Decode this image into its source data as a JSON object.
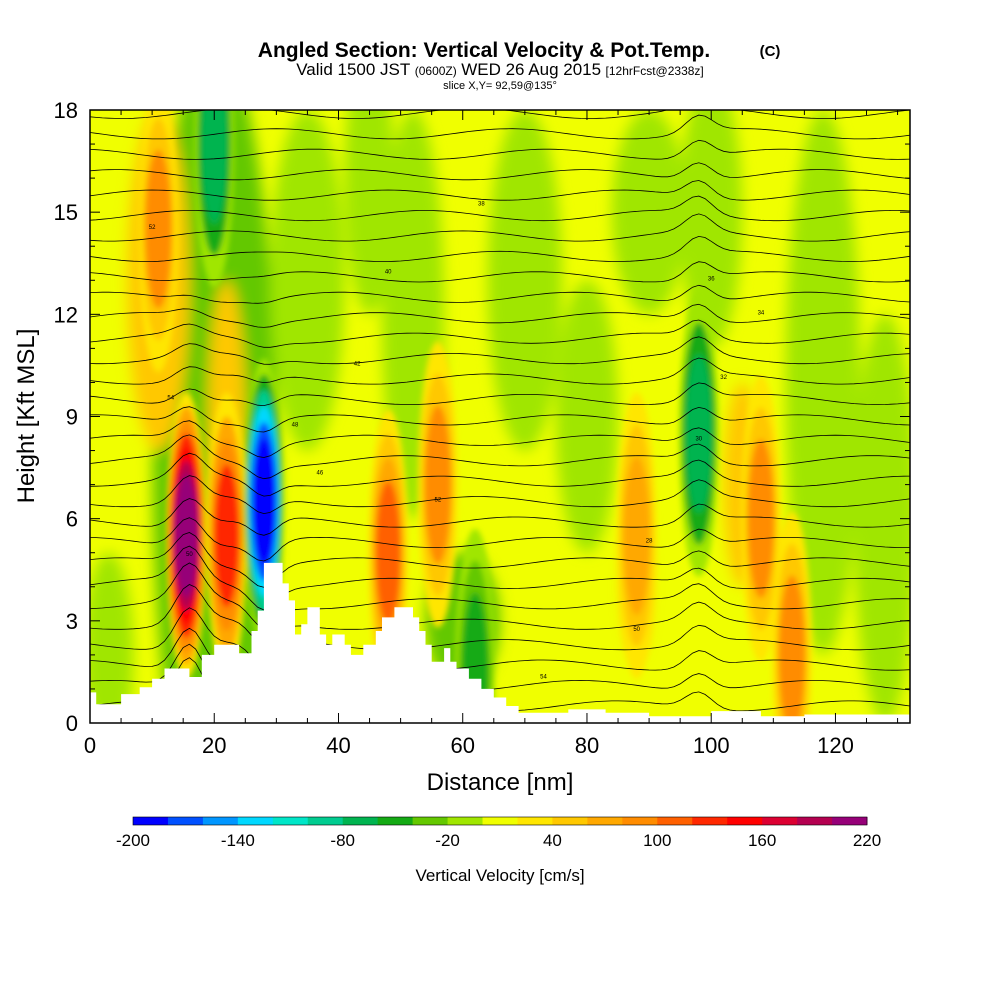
{
  "chart_data": {
    "type": "heatmap",
    "title": "Angled Section: Vertical Velocity & Pot.Temp.",
    "title_suffix": "(C)",
    "subtitle_prefix": "Valid 1500 JST",
    "subtitle_utc": "(0600Z)",
    "subtitle_date": "WED 26 Aug 2015",
    "subtitle_fcst": "[12hrFcst@2338z]",
    "slice_info": "slice X,Y= 92,59@135°",
    "xlabel": "Distance [nm]",
    "ylabel": "Height [Kft MSL]",
    "xlim": [
      0,
      132
    ],
    "ylim": [
      0,
      18
    ],
    "xticks": [
      0,
      20,
      40,
      60,
      80,
      100,
      120
    ],
    "yticks": [
      0,
      3,
      6,
      9,
      12,
      15,
      18
    ],
    "colorbar": {
      "label": "Vertical Velocity [cm/s]",
      "min": -200,
      "max": 220,
      "step": 20,
      "tick_labels": [
        -200,
        -140,
        -80,
        -20,
        40,
        100,
        160,
        220
      ],
      "colors": [
        "#0000ff",
        "#0050ff",
        "#0096ff",
        "#00d8ff",
        "#00e6c8",
        "#00cc90",
        "#00b450",
        "#14aa14",
        "#64c800",
        "#a0e600",
        "#f0ff00",
        "#ffe600",
        "#ffc800",
        "#ffa800",
        "#ff8c00",
        "#ff6000",
        "#ff2800",
        "#ff0000",
        "#dc0032",
        "#b40050",
        "#960078"
      ]
    },
    "terrain": [
      [
        0,
        0.9
      ],
      [
        1,
        0.9
      ],
      [
        1,
        0.55
      ],
      [
        5,
        0.55
      ],
      [
        5,
        0.85
      ],
      [
        8,
        0.85
      ],
      [
        8,
        1.05
      ],
      [
        10,
        1.05
      ],
      [
        10,
        1.3
      ],
      [
        12,
        1.3
      ],
      [
        12,
        1.6
      ],
      [
        16,
        1.6
      ],
      [
        16,
        1.35
      ],
      [
        18,
        1.35
      ],
      [
        18,
        2.0
      ],
      [
        20,
        2.0
      ],
      [
        20,
        2.3
      ],
      [
        24,
        2.3
      ],
      [
        24,
        2.05
      ],
      [
        26,
        2.05
      ],
      [
        26,
        2.7
      ],
      [
        27,
        2.7
      ],
      [
        27,
        3.3
      ],
      [
        28,
        3.3
      ],
      [
        28,
        4.7
      ],
      [
        31,
        4.7
      ],
      [
        31,
        4.1
      ],
      [
        32,
        4.1
      ],
      [
        32,
        3.6
      ],
      [
        33,
        3.6
      ],
      [
        33,
        2.6
      ],
      [
        34,
        2.6
      ],
      [
        34,
        2.9
      ],
      [
        35,
        2.9
      ],
      [
        35,
        3.4
      ],
      [
        37,
        3.4
      ],
      [
        37,
        2.6
      ],
      [
        38,
        2.6
      ],
      [
        38,
        2.3
      ],
      [
        39,
        2.3
      ],
      [
        39,
        2.6
      ],
      [
        41,
        2.6
      ],
      [
        41,
        2.3
      ],
      [
        42,
        2.3
      ],
      [
        42,
        2.0
      ],
      [
        44,
        2.0
      ],
      [
        44,
        2.3
      ],
      [
        46,
        2.3
      ],
      [
        46,
        2.7
      ],
      [
        47,
        2.7
      ],
      [
        47,
        3.1
      ],
      [
        49,
        3.1
      ],
      [
        49,
        3.4
      ],
      [
        52,
        3.4
      ],
      [
        52,
        3.1
      ],
      [
        53,
        3.1
      ],
      [
        53,
        2.7
      ],
      [
        54,
        2.7
      ],
      [
        54,
        2.3
      ],
      [
        55,
        2.3
      ],
      [
        55,
        1.8
      ],
      [
        57,
        1.8
      ],
      [
        57,
        2.2
      ],
      [
        58,
        2.2
      ],
      [
        58,
        1.8
      ],
      [
        59,
        1.8
      ],
      [
        59,
        1.6
      ],
      [
        61,
        1.6
      ],
      [
        61,
        1.3
      ],
      [
        63,
        1.3
      ],
      [
        63,
        1.0
      ],
      [
        65,
        1.0
      ],
      [
        65,
        0.75
      ],
      [
        67,
        0.75
      ],
      [
        67,
        0.5
      ],
      [
        69,
        0.5
      ],
      [
        69,
        0.3
      ],
      [
        77,
        0.3
      ],
      [
        77,
        0.4
      ],
      [
        83,
        0.4
      ],
      [
        83,
        0.3
      ],
      [
        90,
        0.3
      ],
      [
        90,
        0.2
      ],
      [
        100,
        0.2
      ],
      [
        100,
        0.35
      ],
      [
        108,
        0.35
      ],
      [
        108,
        0.2
      ],
      [
        115,
        0.2
      ],
      [
        115,
        0.25
      ],
      [
        132,
        0.25
      ]
    ],
    "updraft_cores": [
      {
        "x": 15.5,
        "z": 5.5,
        "value": 220
      },
      {
        "x": 22,
        "z": 5.5,
        "value": 120
      },
      {
        "x": 11,
        "z": 14.5,
        "value": 80
      },
      {
        "x": 48,
        "z": 5,
        "value": 100
      },
      {
        "x": 56,
        "z": 7,
        "value": 80
      },
      {
        "x": 88,
        "z": 5.5,
        "value": 70
      },
      {
        "x": 108,
        "z": 6,
        "value": 80
      },
      {
        "x": 113,
        "z": 2,
        "value": 80
      }
    ],
    "downdraft_cores": [
      {
        "x": 28,
        "z": 6.5,
        "value": -200
      },
      {
        "x": 20,
        "z": 17,
        "value": -80
      },
      {
        "x": 98,
        "z": 8.5,
        "value": -80
      },
      {
        "x": 62,
        "z": 1.5,
        "value": -60
      }
    ],
    "contour_labels": [
      "50",
      "54",
      "52",
      "48",
      "46",
      "42",
      "40",
      "38",
      "36",
      "34",
      "32",
      "30",
      "28"
    ]
  }
}
